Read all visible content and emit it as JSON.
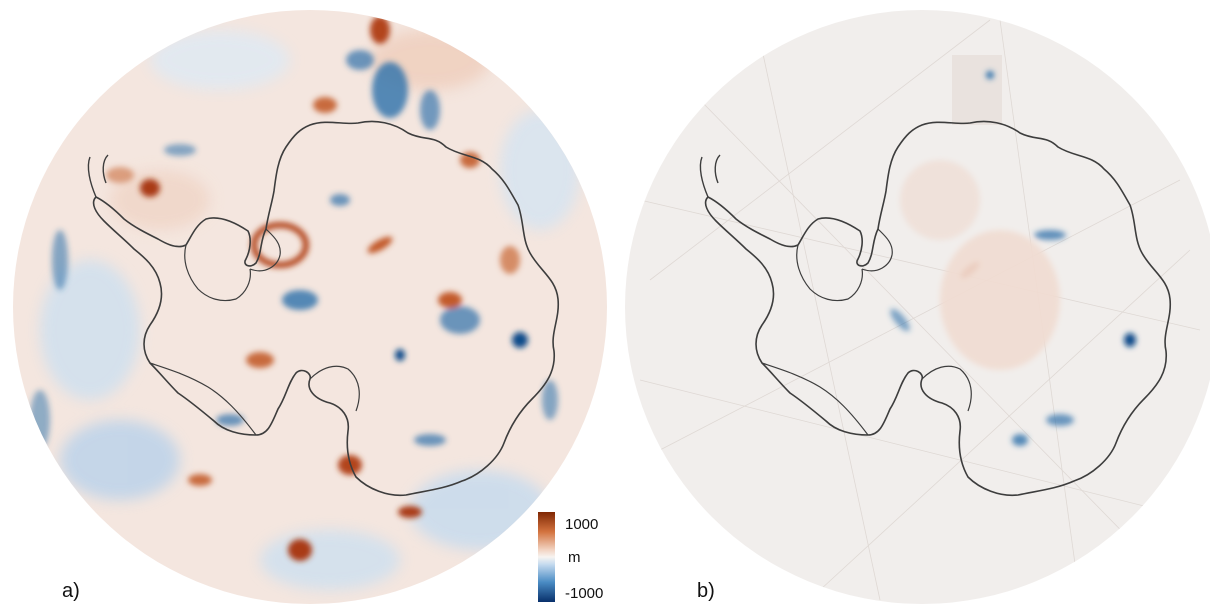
{
  "panels": [
    {
      "label": "a)"
    },
    {
      "label": "b)"
    }
  ],
  "colorbar": {
    "max_label": "1000",
    "unit_label": "m",
    "min_label": "-1000",
    "value_range": [
      -1000,
      1000
    ],
    "colors": {
      "high": "#7f2704",
      "mid": "#f7f4f1",
      "low": "#08306b"
    }
  },
  "map_colors": {
    "background_a": "#f4e6df",
    "background_b": "#f1eeec",
    "coastline": "#444444",
    "red_anomaly": "#b2451c",
    "blue_anomaly": "#2c6faa"
  }
}
